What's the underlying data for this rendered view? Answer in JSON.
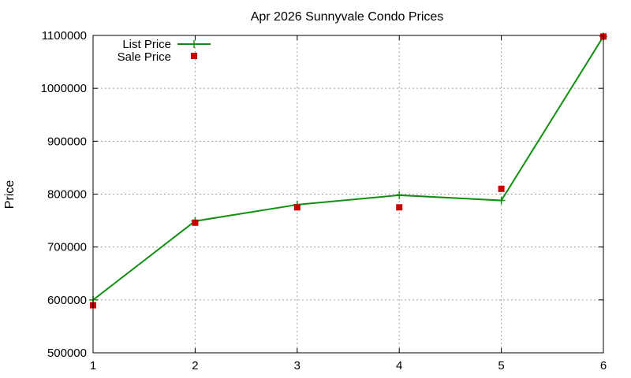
{
  "chart_data": {
    "type": "line",
    "title": "Apr 2026 Sunnyvale Condo Prices",
    "xlabel": "",
    "ylabel": "Price",
    "x": [
      1,
      2,
      3,
      4,
      5,
      6
    ],
    "xlim": [
      1,
      6
    ],
    "ylim": [
      500000,
      1100000
    ],
    "xticks": [
      "1",
      "2",
      "3",
      "4",
      "5",
      "6"
    ],
    "yticks": [
      "500000",
      "600000",
      "700000",
      "800000",
      "900000",
      "1000000",
      "1100000"
    ],
    "grid": true,
    "legend_position": "top-left",
    "series": [
      {
        "name": "List Price",
        "style": "line-with-plus-markers",
        "color": "#109010",
        "values": [
          600000,
          749000,
          780000,
          798000,
          788000,
          1098000
        ]
      },
      {
        "name": "Sale Price",
        "style": "square-markers",
        "color": "#c80000",
        "values": [
          590000,
          746000,
          775000,
          775000,
          810000,
          1098000
        ]
      }
    ]
  }
}
